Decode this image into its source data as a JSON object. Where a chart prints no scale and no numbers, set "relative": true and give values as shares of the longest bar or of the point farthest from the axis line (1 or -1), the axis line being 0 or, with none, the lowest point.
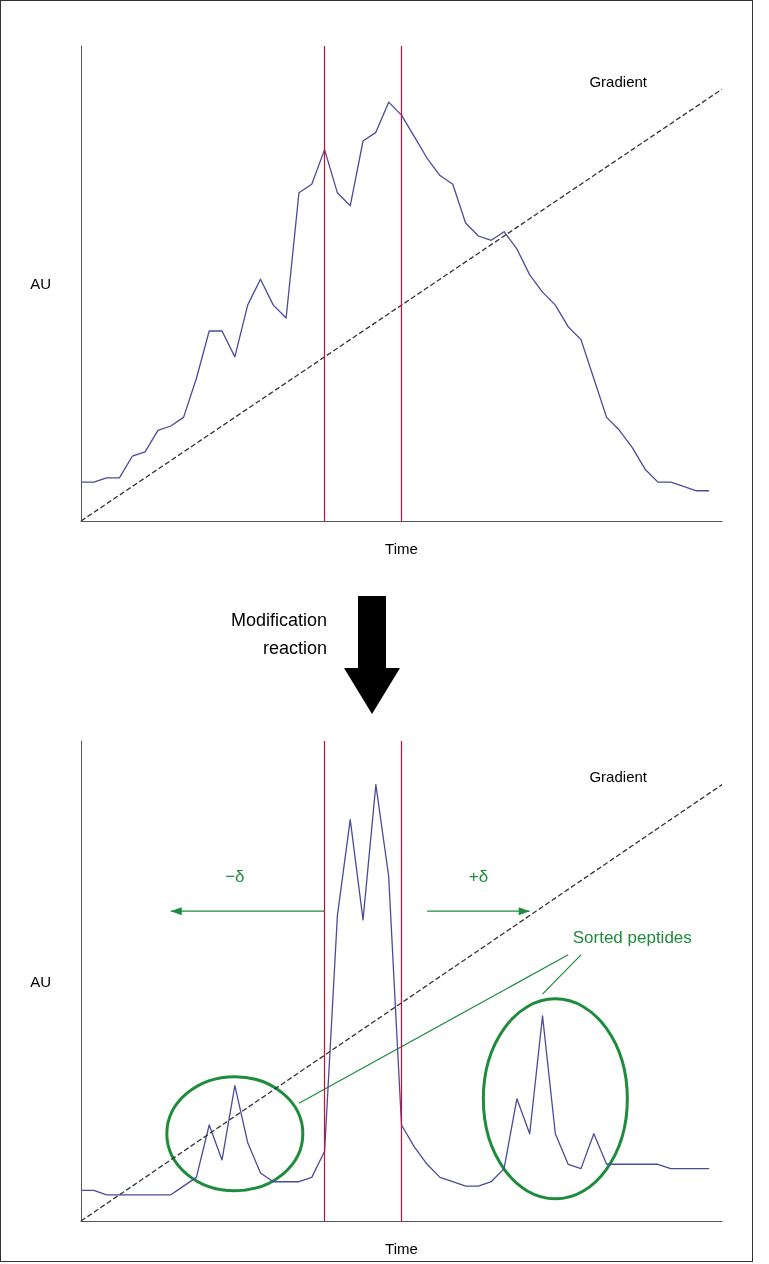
{
  "chart_data": [
    {
      "type": "line",
      "relative": true,
      "xlabel": "Time",
      "ylabel": "AU",
      "marker": "none",
      "annotations": [
        "Modification reaction"
      ],
      "categories": [
        null,
        null,
        null,
        null,
        null,
        null,
        null,
        null,
        null,
        null,
        null,
        null,
        null,
        null,
        null,
        null,
        null,
        null,
        null,
        null,
        null,
        null,
        null,
        null,
        null,
        null,
        null,
        null,
        null,
        null,
        null,
        null,
        null,
        null,
        null,
        null,
        null,
        null,
        null,
        null,
        null,
        null,
        null,
        null,
        null,
        null,
        null,
        null,
        null,
        null,
        null
      ],
      "series": [
        {
          "color": "#4b4b9b",
          "values": [
            0.09,
            0.09,
            0.1,
            0.1,
            0.15,
            0.16,
            0.21,
            0.22,
            0.24,
            0.33,
            0.44,
            0.44,
            0.38,
            0.5,
            0.56,
            0.5,
            0.47,
            0.76,
            0.78,
            0.86,
            0.76,
            0.73,
            0.88,
            0.9,
            0.97,
            0.94,
            0.89,
            0.84,
            0.8,
            0.78,
            0.69,
            0.66,
            0.65,
            0.67,
            0.63,
            0.57,
            0.53,
            0.5,
            0.45,
            0.42,
            0.33,
            0.24,
            0.21,
            0.17,
            0.12,
            0.09,
            0.09,
            0.08,
            0.07,
            0.07,
            null
          ]
        },
        {
          "name": "Gradient",
          "color": "#333333",
          "line_style": "dashed",
          "values": [
            0,
            0.02,
            0.04,
            0.06,
            0.08,
            0.1,
            0.12,
            0.14,
            0.16,
            0.18,
            0.2,
            0.22,
            0.24,
            0.26,
            0.28,
            0.3,
            0.32,
            0.34,
            0.36,
            0.38,
            0.4,
            0.42,
            0.44,
            0.46,
            0.48,
            0.5,
            0.52,
            0.54,
            0.56,
            0.58,
            0.6,
            0.62,
            0.64,
            0.66,
            0.68,
            0.7,
            0.72,
            0.74,
            0.76,
            0.78,
            0.8,
            0.82,
            0.84,
            0.86,
            0.88,
            0.9,
            0.92,
            0.94,
            0.96,
            0.98,
            1
          ]
        }
      ]
    },
    {
      "type": "line",
      "relative": true,
      "xlabel": "Time",
      "ylabel": "AU",
      "marker": "none",
      "annotations": [
        "−δ",
        "+δ",
        "Sorted peptides"
      ],
      "categories": [
        null,
        null,
        null,
        null,
        null,
        null,
        null,
        null,
        null,
        null,
        null,
        null,
        null,
        null,
        null,
        null,
        null,
        null,
        null,
        null,
        null,
        null,
        null,
        null,
        null,
        null,
        null,
        null,
        null,
        null,
        null,
        null,
        null,
        null,
        null,
        null,
        null,
        null,
        null,
        null,
        null,
        null,
        null,
        null,
        null,
        null,
        null,
        null,
        null,
        null,
        null
      ],
      "series": [
        {
          "color": "#4b4b9b",
          "values": [
            0.07,
            0.07,
            0.06,
            0.06,
            0.06,
            0.06,
            0.06,
            0.06,
            0.08,
            0.1,
            0.22,
            0.14,
            0.31,
            0.18,
            0.11,
            0.09,
            0.09,
            0.09,
            0.1,
            0.16,
            0.7,
            0.92,
            0.69,
            1,
            0.79,
            0.22,
            0.17,
            0.13,
            0.1,
            0.09,
            0.08,
            0.08,
            0.09,
            0.12,
            0.28,
            0.2,
            0.47,
            0.2,
            0.13,
            0.12,
            0.2,
            0.13,
            0.13,
            0.13,
            0.13,
            0.13,
            0.12,
            0.12,
            0.12,
            0.12,
            null
          ]
        },
        {
          "name": "Gradient",
          "color": "#333333",
          "line_style": "dashed",
          "values": [
            0,
            0.02,
            0.04,
            0.06,
            0.08,
            0.1,
            0.12,
            0.14,
            0.16,
            0.18,
            0.2,
            0.22,
            0.24,
            0.26,
            0.28,
            0.3,
            0.32,
            0.34,
            0.36,
            0.38,
            0.4,
            0.42,
            0.44,
            0.46,
            0.48,
            0.5,
            0.52,
            0.54,
            0.56,
            0.58,
            0.6,
            0.62,
            0.64,
            0.66,
            0.68,
            0.7,
            0.72,
            0.74,
            0.76,
            0.78,
            0.8,
            0.82,
            0.84,
            0.86,
            0.88,
            0.9,
            0.92,
            0.94,
            0.96,
            0.98,
            1
          ]
        }
      ]
    }
  ]
}
